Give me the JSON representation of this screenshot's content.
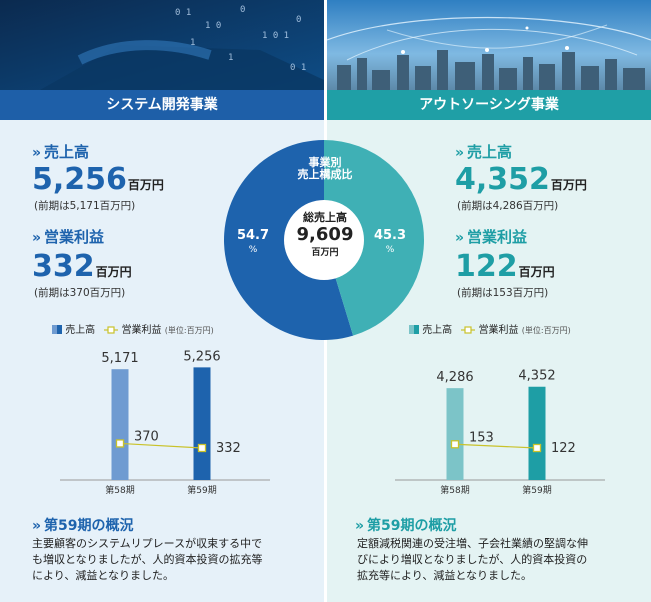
{
  "total": {
    "title_line1": "事業別",
    "title_line2": "売上構成比",
    "label": "総売上高",
    "value": "9,609",
    "unit": "百万円"
  },
  "pie": {
    "left_pct": "54.7",
    "right_pct": "45.3",
    "pct_unit": "%"
  },
  "chevron": "»",
  "left": {
    "banner": "システム開発事業",
    "sales_label": "売上高",
    "sales_value": "5,256",
    "sales_unit": "百万円",
    "sales_prev": "(前期は5,171百万円)",
    "profit_label": "営業利益",
    "profit_value": "332",
    "profit_unit": "百万円",
    "profit_prev": "(前期は370百万円)",
    "legend_sales": "売上高",
    "legend_profit": "営業利益",
    "legend_unit": "(単位:百万円)",
    "summary_title": "第59期の概況",
    "summary_line1": "主要顧客のシステムリプレースが収束する中で",
    "summary_line2": "も増収となりましたが、人的資本投資の拡充等",
    "summary_line3": "により、減益となりました。"
  },
  "right": {
    "banner": "アウトソーシング事業",
    "sales_label": "売上高",
    "sales_value": "4,352",
    "sales_unit": "百万円",
    "sales_prev": "(前期は4,286百万円)",
    "profit_label": "営業利益",
    "profit_value": "122",
    "profit_unit": "百万円",
    "profit_prev": "(前期は153百万円)",
    "legend_sales": "売上高",
    "legend_profit": "営業利益",
    "legend_unit": "(単位:百万円)",
    "summary_title": "第59期の概況",
    "summary_line1": "定額減税関連の受注増、子会社業績の堅調な伸",
    "summary_line2": "びにより増収となりましたが、人的資本投資の",
    "summary_line3": "拡充等により、減益となりました。"
  },
  "chart_data": [
    {
      "type": "pie",
      "title": "事業別 売上構成比",
      "center_label": "総売上高 9,609 百万円",
      "slices": [
        {
          "name": "システム開発事業",
          "value": 54.7,
          "color": "#1e63ad"
        },
        {
          "name": "アウトソーシング事業",
          "value": 45.3,
          "color": "#3fb0b5"
        }
      ]
    },
    {
      "type": "bar",
      "categories": [
        "第58期",
        "第59期"
      ],
      "series": [
        {
          "name": "売上高",
          "values": [
            5171,
            5256
          ],
          "value_labels": [
            "5,171",
            "5,256"
          ],
          "colors": [
            "#6f9bd1",
            "#1e63ad"
          ]
        },
        {
          "name": "営業利益",
          "type": "line",
          "values": [
            370,
            332
          ],
          "value_labels": [
            "370",
            "332"
          ],
          "color": "#c9c22a"
        }
      ]
    },
    {
      "type": "bar",
      "categories": [
        "第58期",
        "第59期"
      ],
      "series": [
        {
          "name": "売上高",
          "values": [
            4286,
            4352
          ],
          "value_labels": [
            "4,286",
            "4,352"
          ],
          "colors": [
            "#7cc4c8",
            "#1e9ea5"
          ]
        },
        {
          "name": "営業利益",
          "type": "line",
          "values": [
            153,
            122
          ],
          "value_labels": [
            "153",
            "122"
          ],
          "color": "#c9c22a"
        }
      ]
    }
  ]
}
